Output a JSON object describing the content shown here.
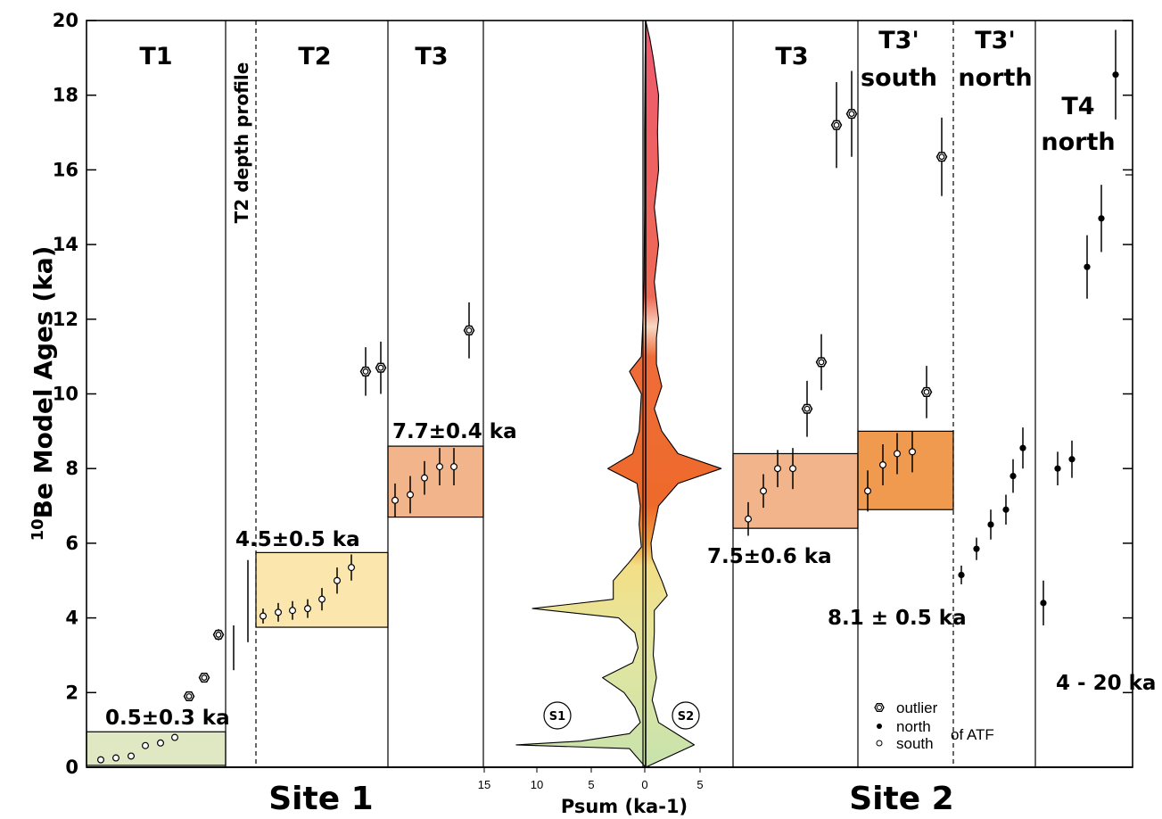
{
  "chart_data": {
    "type": "scatter",
    "ylabel_prefix": "10",
    "ylabel": "Be Model Ages (ka)",
    "ylim": [
      0,
      20
    ],
    "yticks": [
      0,
      2,
      4,
      6,
      8,
      10,
      12,
      14,
      16,
      18,
      20
    ],
    "panels": [
      {
        "label": "T1",
        "site": "Site 1"
      },
      {
        "label": "T2 depth profile",
        "site": "Site 1"
      },
      {
        "label": "T2",
        "site": "Site 1"
      },
      {
        "label": "T3",
        "site": "Site 1"
      },
      {
        "label": "T3",
        "site": "Site 2"
      },
      {
        "label": "T3' south",
        "site": "Site 2"
      },
      {
        "label": "T3' north",
        "site": "Site 2"
      },
      {
        "label": "T4 north",
        "site": "Site 2"
      }
    ],
    "site_labels": [
      "Site 1",
      "Site 2"
    ],
    "age_bands": [
      {
        "panel": "T1",
        "label": "0.5±0.3 ka",
        "low": 0.05,
        "high": 0.95,
        "color": "#dfe7c3"
      },
      {
        "panel": "T2",
        "label": "4.5±0.5 ka",
        "low": 3.75,
        "high": 5.75,
        "color": "#fbe7ae"
      },
      {
        "panel": "T3 site 1",
        "label": "7.7±0.4 ka",
        "low": 6.7,
        "high": 8.6,
        "color": "#f2b48a"
      },
      {
        "panel": "T3 site 2",
        "label": "7.5±0.6 ka",
        "low": 6.4,
        "high": 8.4,
        "color": "#f2b48a"
      },
      {
        "panel": "T3' south",
        "label": "8.1 ± 0.5 ka",
        "low": 6.9,
        "high": 9.0,
        "color": "#ef9a4e"
      },
      {
        "panel": "T4 north",
        "label": "4 - 20 ka",
        "low": null,
        "high": null,
        "color": null
      }
    ],
    "series": [
      {
        "panel": "T1",
        "type": "south",
        "points": [
          {
            "y": 0.2,
            "err": 0
          },
          {
            "y": 0.25,
            "err": 0
          },
          {
            "y": 0.3,
            "err": 0
          },
          {
            "y": 0.58,
            "err": 0
          },
          {
            "y": 0.65,
            "err": 0
          },
          {
            "y": 0.8,
            "err": 0
          }
        ]
      },
      {
        "panel": "T1",
        "type": "outlier",
        "points": [
          {
            "y": 1.9,
            "err": 0.1
          },
          {
            "y": 2.4,
            "err": 0.1
          },
          {
            "y": 3.55,
            "err": 0.15
          }
        ]
      },
      {
        "panel": "T2 depth profile",
        "type": "none",
        "points": [
          {
            "y": 3.2,
            "err": 0.6
          },
          {
            "y": 4.45,
            "err": 1.1
          }
        ]
      },
      {
        "panel": "T2",
        "type": "south",
        "points": [
          {
            "y": 4.05,
            "err": 0.2
          },
          {
            "y": 4.15,
            "err": 0.25
          },
          {
            "y": 4.2,
            "err": 0.25
          },
          {
            "y": 4.25,
            "err": 0.25
          },
          {
            "y": 4.5,
            "err": 0.3
          },
          {
            "y": 5.0,
            "err": 0.35
          },
          {
            "y": 5.35,
            "err": 0.35
          }
        ]
      },
      {
        "panel": "T2",
        "type": "outlier",
        "points": [
          {
            "y": 10.6,
            "err": 0.65
          },
          {
            "y": 10.7,
            "err": 0.7
          }
        ]
      },
      {
        "panel": "T3 site 1",
        "type": "south",
        "points": [
          {
            "y": 7.15,
            "err": 0.45
          },
          {
            "y": 7.3,
            "err": 0.5
          },
          {
            "y": 7.75,
            "err": 0.45
          },
          {
            "y": 8.05,
            "err": 0.5
          },
          {
            "y": 8.05,
            "err": 0.5
          }
        ]
      },
      {
        "panel": "T3 site 1",
        "type": "outlier",
        "points": [
          {
            "y": 11.7,
            "err": 0.75
          }
        ]
      },
      {
        "panel": "T3 site 2",
        "type": "south",
        "points": [
          {
            "y": 6.65,
            "err": 0.45
          },
          {
            "y": 7.4,
            "err": 0.45
          },
          {
            "y": 8.0,
            "err": 0.5
          },
          {
            "y": 8.0,
            "err": 0.55
          }
        ]
      },
      {
        "panel": "T3 site 2",
        "type": "outlier",
        "points": [
          {
            "y": 9.6,
            "err": 0.75
          },
          {
            "y": 10.85,
            "err": 0.75
          },
          {
            "y": 17.2,
            "err": 1.15
          },
          {
            "y": 17.5,
            "err": 1.15
          }
        ]
      },
      {
        "panel": "T3' south",
        "type": "south",
        "points": [
          {
            "y": 7.4,
            "err": 0.55
          },
          {
            "y": 8.1,
            "err": 0.55
          },
          {
            "y": 8.4,
            "err": 0.55
          },
          {
            "y": 8.45,
            "err": 0.55
          }
        ]
      },
      {
        "panel": "T3' south",
        "type": "outlier",
        "points": [
          {
            "y": 10.05,
            "err": 0.7
          },
          {
            "y": 16.35,
            "err": 1.05
          }
        ]
      },
      {
        "panel": "T3' north",
        "type": "north",
        "points": [
          {
            "y": 5.15,
            "err": 0.25
          },
          {
            "y": 5.85,
            "err": 0.3
          },
          {
            "y": 6.5,
            "err": 0.4
          },
          {
            "y": 6.9,
            "err": 0.4
          },
          {
            "y": 7.8,
            "err": 0.45
          },
          {
            "y": 8.55,
            "err": 0.55
          }
        ]
      },
      {
        "panel": "T4 north",
        "type": "north",
        "points": [
          {
            "y": 4.4,
            "err": 0.6
          },
          {
            "y": 8.0,
            "err": 0.45
          },
          {
            "y": 8.25,
            "err": 0.5
          },
          {
            "y": 13.4,
            "err": 0.85
          },
          {
            "y": 14.7,
            "err": 0.9
          },
          {
            "y": 18.55,
            "err": 1.2
          }
        ]
      }
    ],
    "psum": {
      "xlabel": "Psum (ka-1)",
      "xticks_left": [
        "15",
        "10",
        "5",
        "0"
      ],
      "xticks_right": [
        "5"
      ],
      "markers": [
        "S1",
        "S2"
      ],
      "left_curve": [
        [
          0,
          0
        ],
        [
          0.5,
          1.5
        ],
        [
          0.6,
          12
        ],
        [
          0.7,
          6
        ],
        [
          0.9,
          1.5
        ],
        [
          1.2,
          0.5
        ],
        [
          1.6,
          1
        ],
        [
          2.0,
          2
        ],
        [
          2.4,
          4
        ],
        [
          2.8,
          1.2
        ],
        [
          3.2,
          0.7
        ],
        [
          3.6,
          1
        ],
        [
          4.0,
          2.5
        ],
        [
          4.25,
          10.5
        ],
        [
          4.5,
          3
        ],
        [
          5.0,
          3
        ],
        [
          5.5,
          1.5
        ],
        [
          5.9,
          0.4
        ],
        [
          6.5,
          0.6
        ],
        [
          7.0,
          0.5
        ],
        [
          7.6,
          0.8
        ],
        [
          8.0,
          3.5
        ],
        [
          8.4,
          1.2
        ],
        [
          9.0,
          0.6
        ],
        [
          10.0,
          0.4
        ],
        [
          10.6,
          1.5
        ],
        [
          11.0,
          0.4
        ],
        [
          12.0,
          0.25
        ],
        [
          13.0,
          0.15
        ],
        [
          15.0,
          0.1
        ],
        [
          17.0,
          0.1
        ],
        [
          19.0,
          0.05
        ],
        [
          20.0,
          0
        ]
      ],
      "right_curve": [
        [
          0,
          0
        ],
        [
          0.6,
          4.5
        ],
        [
          1.2,
          1.2
        ],
        [
          1.8,
          0.6
        ],
        [
          2.4,
          1
        ],
        [
          3.0,
          0.7
        ],
        [
          3.6,
          0.8
        ],
        [
          4.2,
          0.8
        ],
        [
          4.6,
          2
        ],
        [
          5.0,
          1.5
        ],
        [
          5.6,
          0.6
        ],
        [
          6.0,
          0.5
        ],
        [
          7.0,
          1.2
        ],
        [
          7.6,
          3
        ],
        [
          8.0,
          7
        ],
        [
          8.4,
          3
        ],
        [
          9.0,
          1.5
        ],
        [
          9.6,
          0.8
        ],
        [
          10.2,
          1.5
        ],
        [
          10.8,
          1
        ],
        [
          11.5,
          1
        ],
        [
          12.0,
          1.2
        ],
        [
          13.0,
          0.8
        ],
        [
          14.0,
          1.2
        ],
        [
          15.0,
          0.8
        ],
        [
          16.0,
          1.2
        ],
        [
          17.0,
          1.1
        ],
        [
          18.0,
          1.2
        ],
        [
          19.0,
          0.7
        ],
        [
          19.5,
          0.4
        ],
        [
          20.0,
          0
        ]
      ]
    },
    "legend": {
      "outlier": "outlier",
      "north": "north",
      "south": "south",
      "suffix": "of ATF"
    },
    "colors": {
      "psum_top": "#ec4a5f",
      "psum_orange": "#ee6a2a",
      "psum_yellow": "#efe18f",
      "psum_green": "#c7e2ac"
    }
  }
}
